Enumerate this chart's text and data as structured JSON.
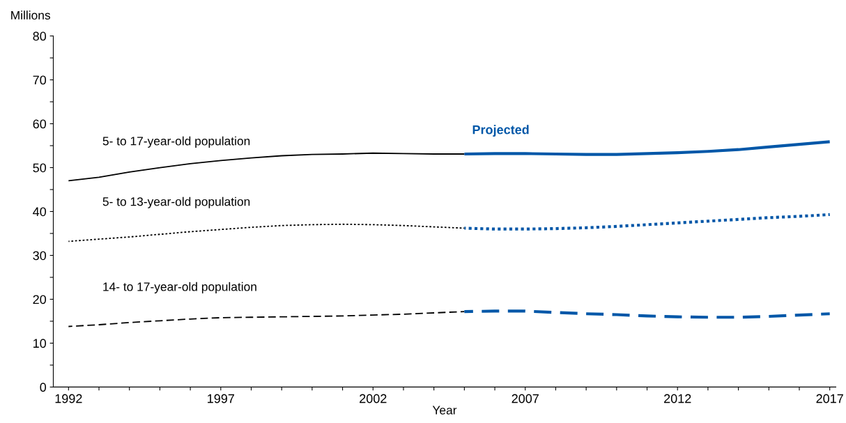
{
  "chart_data": {
    "type": "line",
    "xlabel": "Year",
    "ylabel": "Millions",
    "xlim": [
      1991.5,
      2017.2
    ],
    "ylim": [
      0,
      80
    ],
    "xticks": [
      1992,
      {
        "value": 1993,
        "label": null
      },
      {
        "value": 1994,
        "label": null
      },
      {
        "value": 1995,
        "label": null
      },
      {
        "value": 1996,
        "label": null
      },
      1997,
      {
        "value": 1998,
        "label": null
      },
      {
        "value": 1999,
        "label": null
      },
      {
        "value": 2000,
        "label": null
      },
      {
        "value": 2001,
        "label": null
      },
      2002,
      {
        "value": 2003,
        "label": null
      },
      {
        "value": 2004,
        "label": null
      },
      {
        "value": 2005,
        "label": null
      },
      {
        "value": 2006,
        "label": null
      },
      2007,
      {
        "value": 2008,
        "label": null
      },
      {
        "value": 2009,
        "label": null
      },
      {
        "value": 2010,
        "label": null
      },
      {
        "value": 2011,
        "label": null
      },
      2012,
      {
        "value": 2013,
        "label": null
      },
      {
        "value": 2014,
        "label": null
      },
      {
        "value": 2015,
        "label": null
      },
      {
        "value": 2016,
        "label": null
      },
      2017
    ],
    "yticks": [
      0,
      {
        "value": 5,
        "label": null
      },
      10,
      {
        "value": 15,
        "label": null
      },
      20,
      {
        "value": 25,
        "label": null
      },
      30,
      {
        "value": 35,
        "label": null
      },
      40,
      {
        "value": 45,
        "label": null
      },
      50,
      {
        "value": 55,
        "label": null
      },
      60,
      {
        "value": 65,
        "label": null
      },
      70,
      {
        "value": 75,
        "label": null
      },
      80
    ],
    "grid": false,
    "legend": false,
    "marker": "none",
    "annotations": [
      "Projected"
    ],
    "series": [
      {
        "name": "5- to 17-year-old population",
        "color": "#000000",
        "line_style": "solid",
        "x": [
          1992,
          1993,
          1994,
          1995,
          1996,
          1997,
          1998,
          1999,
          2000,
          2001,
          2002,
          2003,
          2004,
          2005
        ],
        "values": [
          47.0,
          47.8,
          49.0,
          50.0,
          50.9,
          51.6,
          52.2,
          52.7,
          53.0,
          53.1,
          53.3,
          53.2,
          53.1,
          53.1
        ]
      },
      {
        "name": "5- to 13-year-old population",
        "color": "#000000",
        "line_style": "dotted",
        "x": [
          1992,
          1993,
          1994,
          1995,
          1996,
          1997,
          1998,
          1999,
          2000,
          2001,
          2002,
          2003,
          2004,
          2005
        ],
        "values": [
          33.2,
          33.7,
          34.2,
          34.8,
          35.4,
          35.9,
          36.4,
          36.8,
          37.0,
          37.1,
          37.0,
          36.8,
          36.5,
          36.2
        ]
      },
      {
        "name": "14- to 17-year-old population",
        "color": "#000000",
        "line_style": "dashed",
        "x": [
          1992,
          1993,
          1994,
          1995,
          1996,
          1997,
          1998,
          1999,
          2000,
          2001,
          2002,
          2003,
          2004,
          2005
        ],
        "values": [
          13.8,
          14.2,
          14.7,
          15.1,
          15.5,
          15.8,
          15.9,
          16.0,
          16.1,
          16.2,
          16.4,
          16.6,
          16.9,
          17.2
        ]
      },
      {
        "color": "#0057a8",
        "line_style": "solid",
        "x": [
          2005,
          2006,
          2007,
          2008,
          2009,
          2010,
          2011,
          2012,
          2013,
          2014,
          2015,
          2016,
          2017
        ],
        "values": [
          53.1,
          53.2,
          53.2,
          53.1,
          53.0,
          53.0,
          53.2,
          53.4,
          53.7,
          54.1,
          54.7,
          55.3,
          55.9
        ]
      },
      {
        "color": "#0057a8",
        "line_style": "dotted",
        "x": [
          2005,
          2006,
          2007,
          2008,
          2009,
          2010,
          2011,
          2012,
          2013,
          2014,
          2015,
          2016,
          2017
        ],
        "values": [
          36.2,
          36.0,
          36.0,
          36.1,
          36.3,
          36.6,
          37.0,
          37.4,
          37.8,
          38.2,
          38.6,
          38.9,
          39.3
        ]
      },
      {
        "color": "#0057a8",
        "line_style": "dashed",
        "x": [
          2005,
          2006,
          2007,
          2008,
          2009,
          2010,
          2011,
          2012,
          2013,
          2014,
          2015,
          2016,
          2017
        ],
        "values": [
          17.2,
          17.3,
          17.3,
          17.0,
          16.7,
          16.5,
          16.2,
          16.0,
          15.9,
          15.9,
          16.1,
          16.4,
          16.7
        ]
      }
    ]
  }
}
